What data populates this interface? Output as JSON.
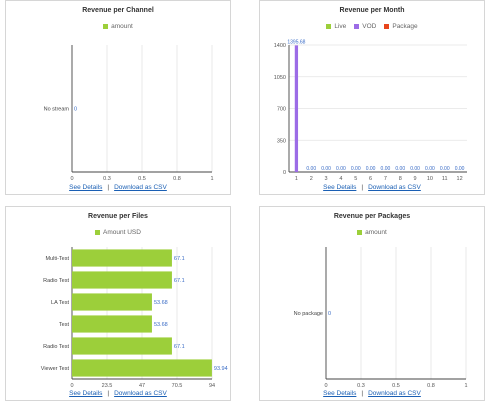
{
  "colors": {
    "lime": "#9ccf3a",
    "purple": "#9c6ce6",
    "red": "#e8451c",
    "label_blue": "#3a6cc6"
  },
  "links": {
    "details": "See Details",
    "sep": "|",
    "csv": "Download as CSV"
  },
  "panels": {
    "channel": {
      "title": "Revenue per Channel"
    },
    "month": {
      "title": "Revenue per Month"
    },
    "files": {
      "title": "Revenue per Files"
    },
    "packages": {
      "title": "Revenue per Packages"
    }
  },
  "chart_data": [
    {
      "type": "bar",
      "orientation": "horizontal",
      "title": "Revenue per Channel",
      "legend": [
        "amount"
      ],
      "legend_colors": [
        "#9ccf3a"
      ],
      "categories": [
        "No stream"
      ],
      "series": [
        {
          "name": "amount",
          "values": [
            0
          ]
        }
      ],
      "data_labels": [
        "0"
      ],
      "xlim": [
        0,
        1
      ],
      "xticks": [
        "0",
        "0.3",
        "0.5",
        "0.8",
        "1"
      ],
      "grid": true
    },
    {
      "type": "bar",
      "title": "Revenue per Month",
      "legend": [
        "Live",
        "VOD",
        "Package"
      ],
      "legend_colors": [
        "#9ccf3a",
        "#9c6ce6",
        "#e8451c"
      ],
      "categories": [
        "1",
        "2",
        "3",
        "4",
        "5",
        "6",
        "7",
        "8",
        "9",
        "10",
        "11",
        "12"
      ],
      "series": [
        {
          "name": "Live",
          "values": [
            0,
            0,
            0,
            0,
            0,
            0,
            0,
            0,
            0,
            0,
            0,
            0
          ]
        },
        {
          "name": "VOD",
          "values": [
            1395.68,
            0,
            0,
            0,
            0,
            0,
            0,
            0,
            0,
            0,
            0,
            0
          ]
        },
        {
          "name": "Package",
          "values": [
            0,
            0,
            0,
            0,
            0,
            0,
            0,
            0,
            0,
            0,
            0,
            0
          ]
        }
      ],
      "data_labels": [
        "1395.68",
        "0.00",
        "0.00",
        "0.00",
        "0.00",
        "0.00",
        "0.00",
        "0.00",
        "0.00",
        "0.00",
        "0.00",
        "0.00"
      ],
      "ylim": [
        0,
        1400
      ],
      "yticks": [
        "0",
        "350",
        "700",
        "1050",
        "1400"
      ],
      "grid": true
    },
    {
      "type": "bar",
      "orientation": "horizontal",
      "title": "Revenue per Files",
      "legend": [
        "Amount USD"
      ],
      "legend_colors": [
        "#9ccf3a"
      ],
      "categories": [
        "Multi-Test",
        "Radio Test",
        "LA Test",
        "Test",
        "Radio Test",
        "Viewer Test"
      ],
      "series": [
        {
          "name": "Amount USD",
          "values": [
            67.1,
            67.1,
            53.68,
            53.68,
            67.1,
            93.94
          ]
        }
      ],
      "data_labels": [
        "67.1",
        "67.1",
        "53.68",
        "53.68",
        "67.1",
        "93.94"
      ],
      "xlim": [
        0,
        94
      ],
      "xticks": [
        "0",
        "23.5",
        "47",
        "70.5",
        "94"
      ],
      "grid": true
    },
    {
      "type": "bar",
      "orientation": "horizontal",
      "title": "Revenue per Packages",
      "legend": [
        "amount"
      ],
      "legend_colors": [
        "#9ccf3a"
      ],
      "categories": [
        "No package"
      ],
      "series": [
        {
          "name": "amount",
          "values": [
            0
          ]
        }
      ],
      "data_labels": [
        "0"
      ],
      "xlim": [
        0,
        1
      ],
      "xticks": [
        "0",
        "0.3",
        "0.5",
        "0.8",
        "1"
      ],
      "grid": true
    }
  ]
}
